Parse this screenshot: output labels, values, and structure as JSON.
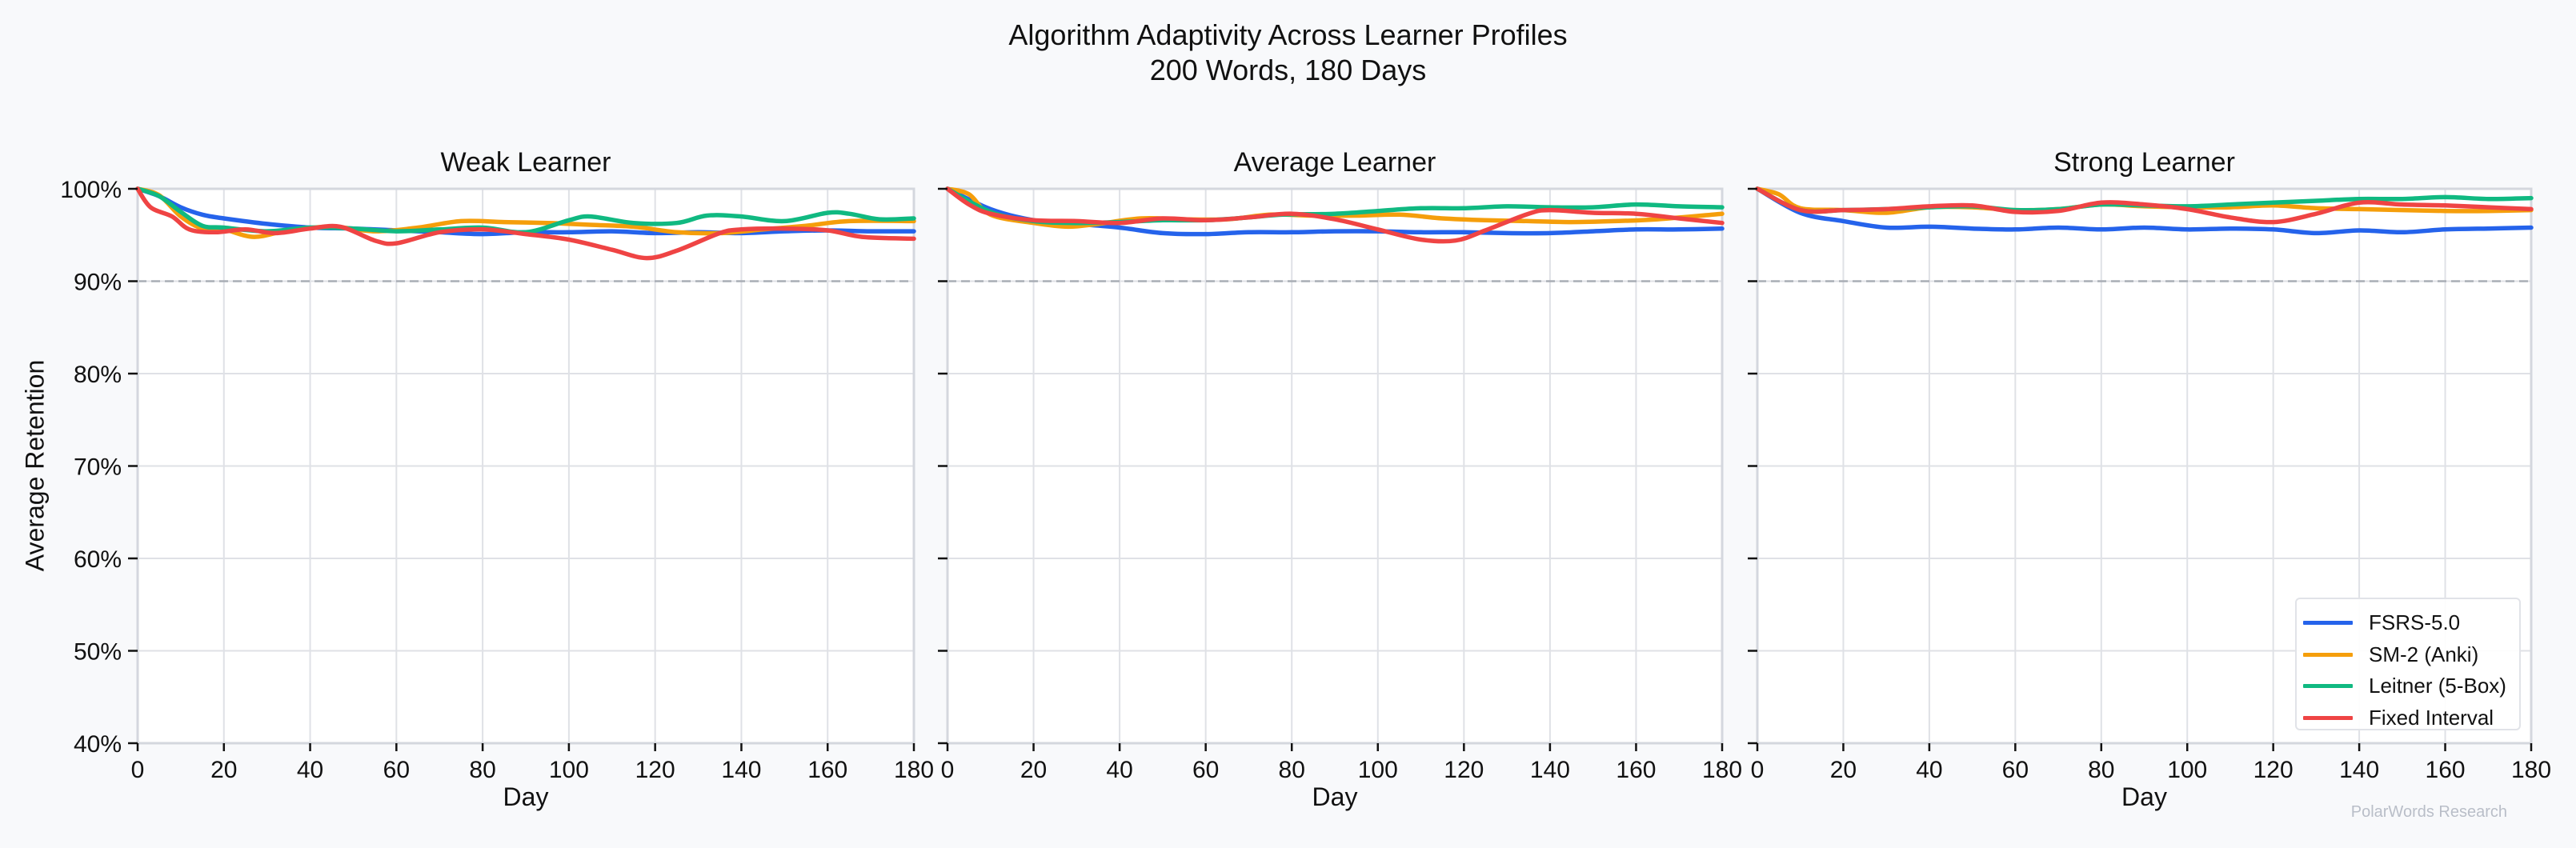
{
  "figure": {
    "title_line1": "Algorithm Adaptivity Across Learner Profiles",
    "title_line2": "200 Words, 180 Days",
    "ylabel": "Average Retention",
    "xlabel": "Day",
    "footer": "PolarWords Research"
  },
  "legend": [
    {
      "name": "FSRS-5.0",
      "color": "#2563eb"
    },
    {
      "name": "SM-2 (Anki)",
      "color": "#f59e0b"
    },
    {
      "name": "Leitner (5-Box)",
      "color": "#10b981"
    },
    {
      "name": "Fixed Interval",
      "color": "#ef4444"
    }
  ],
  "chart_data": [
    {
      "type": "line",
      "title": "Weak Learner",
      "xlabel": "Day",
      "ylabel": "Average Retention",
      "xlim": [
        0,
        180
      ],
      "ylim": [
        40,
        100
      ],
      "xticks": [
        0,
        20,
        40,
        60,
        80,
        100,
        120,
        140,
        160,
        180
      ],
      "yticks": [
        "40%",
        "50%",
        "60%",
        "70%",
        "80%",
        "90%",
        "100%"
      ],
      "reference_line": {
        "y": 90,
        "style": "dashed"
      },
      "grid": true,
      "series": [
        {
          "name": "FSRS-5.0",
          "color": "#2563eb",
          "x": [
            0,
            5,
            10,
            15,
            20,
            30,
            40,
            50,
            60,
            70,
            80,
            90,
            100,
            110,
            120,
            130,
            140,
            150,
            160,
            170,
            180
          ],
          "values": [
            100,
            99.2,
            98.0,
            97.2,
            96.8,
            96.2,
            95.8,
            95.7,
            95.5,
            95.3,
            95.1,
            95.3,
            95.3,
            95.4,
            95.2,
            95.3,
            95.2,
            95.4,
            95.5,
            95.4,
            95.4
          ]
        },
        {
          "name": "SM-2 (Anki)",
          "color": "#f59e0b",
          "x": [
            0,
            5,
            10,
            15,
            20,
            27,
            35,
            45,
            55,
            65,
            75,
            85,
            95,
            105,
            115,
            125,
            135,
            145,
            155,
            165,
            180
          ],
          "values": [
            100,
            99.3,
            97.0,
            95.7,
            95.6,
            94.8,
            95.5,
            95.9,
            95.4,
            95.8,
            96.5,
            96.4,
            96.3,
            96.1,
            95.9,
            95.3,
            95.2,
            95.6,
            96.0,
            96.5,
            96.5
          ]
        },
        {
          "name": "Leitner (5-Box)",
          "color": "#10b981",
          "x": [
            0,
            5,
            10,
            15,
            20,
            30,
            40,
            50,
            60,
            70,
            80,
            90,
            100,
            105,
            115,
            125,
            132,
            140,
            150,
            160,
            165,
            172,
            180
          ],
          "values": [
            100,
            99.2,
            97.5,
            96.0,
            95.8,
            95.4,
            95.8,
            95.7,
            95.4,
            95.6,
            95.8,
            95.3,
            96.6,
            97.0,
            96.3,
            96.3,
            97.1,
            97.0,
            96.5,
            97.4,
            97.3,
            96.7,
            96.8
          ]
        },
        {
          "name": "Fixed Interval",
          "color": "#ef4444",
          "x": [
            0,
            3,
            8,
            12,
            18,
            25,
            32,
            40,
            47,
            55,
            60,
            70,
            80,
            90,
            100,
            110,
            118,
            125,
            135,
            140,
            150,
            160,
            168,
            180
          ],
          "values": [
            100,
            98.0,
            97.0,
            95.6,
            95.3,
            95.6,
            95.2,
            95.7,
            95.9,
            94.4,
            94.1,
            95.3,
            95.6,
            95.1,
            94.5,
            93.4,
            92.5,
            93.3,
            95.2,
            95.6,
            95.7,
            95.5,
            94.8,
            94.6
          ]
        }
      ]
    },
    {
      "type": "line",
      "title": "Average Learner",
      "xlabel": "Day",
      "xlim": [
        0,
        180
      ],
      "ylim": [
        40,
        100
      ],
      "xticks": [
        0,
        20,
        40,
        60,
        80,
        100,
        120,
        140,
        160,
        180
      ],
      "reference_line": {
        "y": 90,
        "style": "dashed"
      },
      "grid": true,
      "series": [
        {
          "name": "FSRS-5.0",
          "color": "#2563eb",
          "x": [
            0,
            10,
            20,
            30,
            40,
            50,
            60,
            70,
            80,
            90,
            100,
            110,
            120,
            130,
            140,
            150,
            160,
            170,
            180
          ],
          "values": [
            100,
            97.8,
            96.6,
            96.2,
            95.8,
            95.2,
            95.1,
            95.3,
            95.3,
            95.4,
            95.4,
            95.3,
            95.3,
            95.2,
            95.2,
            95.4,
            95.6,
            95.6,
            95.7
          ]
        },
        {
          "name": "SM-2 (Anki)",
          "color": "#f59e0b",
          "x": [
            0,
            5,
            10,
            20,
            28,
            35,
            45,
            55,
            65,
            75,
            85,
            95,
            105,
            115,
            125,
            135,
            145,
            155,
            165,
            180
          ],
          "values": [
            100,
            99.4,
            97.2,
            96.3,
            95.9,
            96.2,
            96.8,
            96.7,
            96.7,
            97.2,
            97.1,
            97.1,
            97.2,
            96.8,
            96.6,
            96.5,
            96.4,
            96.5,
            96.7,
            97.3
          ]
        },
        {
          "name": "Leitner (5-Box)",
          "color": "#10b981",
          "x": [
            0,
            10,
            20,
            30,
            40,
            50,
            60,
            70,
            78,
            90,
            100,
            110,
            120,
            130,
            140,
            150,
            160,
            170,
            180
          ],
          "values": [
            100,
            97.5,
            96.5,
            96.3,
            96.4,
            96.6,
            96.6,
            96.9,
            97.2,
            97.3,
            97.6,
            97.9,
            97.9,
            98.1,
            98.0,
            98.0,
            98.3,
            98.1,
            98.0
          ]
        },
        {
          "name": "Fixed Interval",
          "color": "#ef4444",
          "x": [
            0,
            5,
            10,
            20,
            30,
            40,
            50,
            60,
            70,
            80,
            90,
            100,
            110,
            118,
            125,
            135,
            140,
            150,
            160,
            170,
            180
          ],
          "values": [
            100,
            98.3,
            97.3,
            96.6,
            96.5,
            96.3,
            96.8,
            96.6,
            96.9,
            97.3,
            96.7,
            95.6,
            94.5,
            94.4,
            95.5,
            97.3,
            97.7,
            97.4,
            97.3,
            96.8,
            96.3
          ]
        }
      ]
    },
    {
      "type": "line",
      "title": "Strong Learner",
      "xlabel": "Day",
      "xlim": [
        0,
        180
      ],
      "ylim": [
        40,
        100
      ],
      "xticks": [
        0,
        20,
        40,
        60,
        80,
        100,
        120,
        140,
        160,
        180
      ],
      "reference_line": {
        "y": 90,
        "style": "dashed"
      },
      "grid": true,
      "legend_position": "lower right",
      "series": [
        {
          "name": "FSRS-5.0",
          "color": "#2563eb",
          "x": [
            0,
            10,
            20,
            30,
            40,
            50,
            60,
            70,
            80,
            90,
            100,
            110,
            120,
            130,
            140,
            150,
            160,
            170,
            180
          ],
          "values": [
            100,
            97.4,
            96.5,
            95.8,
            95.9,
            95.7,
            95.6,
            95.8,
            95.6,
            95.8,
            95.6,
            95.7,
            95.6,
            95.2,
            95.5,
            95.3,
            95.6,
            95.7,
            95.8
          ]
        },
        {
          "name": "SM-2 (Anki)",
          "color": "#f59e0b",
          "x": [
            0,
            5,
            10,
            20,
            30,
            40,
            50,
            60,
            70,
            80,
            90,
            100,
            110,
            120,
            130,
            140,
            150,
            160,
            170,
            180
          ],
          "values": [
            100,
            99.4,
            97.9,
            97.7,
            97.4,
            98.0,
            98.0,
            97.7,
            97.8,
            98.3,
            98.1,
            98.0,
            98.0,
            98.2,
            97.9,
            97.8,
            97.7,
            97.6,
            97.6,
            97.7
          ]
        },
        {
          "name": "Leitner (5-Box)",
          "color": "#10b981",
          "x": [
            0,
            10,
            20,
            30,
            40,
            50,
            60,
            70,
            80,
            90,
            100,
            110,
            120,
            130,
            140,
            150,
            160,
            170,
            180
          ],
          "values": [
            100,
            97.7,
            97.7,
            97.8,
            98.0,
            98.1,
            97.7,
            97.8,
            98.3,
            98.2,
            98.1,
            98.3,
            98.5,
            98.7,
            98.9,
            98.9,
            99.1,
            98.9,
            99.0
          ]
        },
        {
          "name": "Fixed Interval",
          "color": "#ef4444",
          "x": [
            0,
            10,
            20,
            30,
            40,
            50,
            60,
            70,
            80,
            90,
            100,
            110,
            120,
            130,
            140,
            150,
            160,
            170,
            180
          ],
          "values": [
            100,
            97.7,
            97.7,
            97.8,
            98.1,
            98.2,
            97.5,
            97.6,
            98.5,
            98.3,
            97.8,
            96.9,
            96.4,
            97.3,
            98.5,
            98.3,
            98.2,
            98.0,
            97.8
          ]
        }
      ]
    }
  ]
}
